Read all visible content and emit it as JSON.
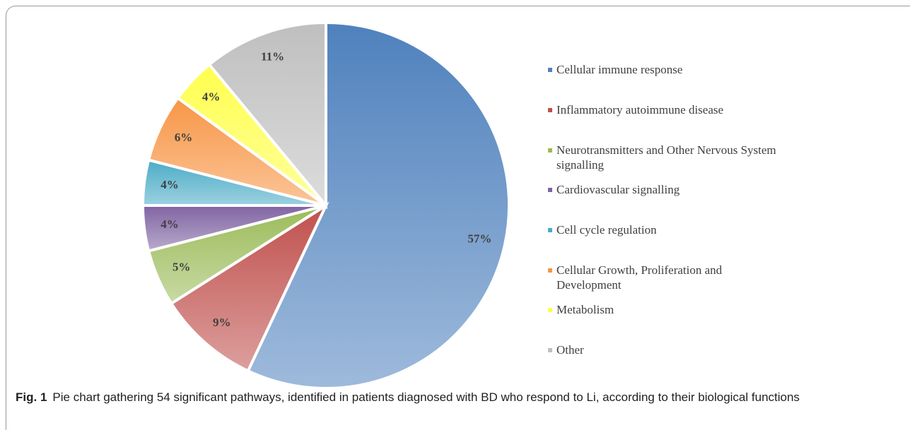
{
  "chart_data": {
    "type": "pie",
    "categories": [
      "Cellular immune response",
      "Inflammatory autoimmune disease",
      "Neurotransmitters and Other Nervous System signalling",
      "Cardiovascular signalling",
      "Cell cycle regulation",
      "Cellular Growth, Proliferation and Development",
      "Metabolism",
      "Other"
    ],
    "values": [
      57,
      9,
      5,
      4,
      4,
      6,
      4,
      11
    ],
    "value_labels": [
      "57%",
      "9%",
      "5%",
      "4%",
      "4%",
      "6%",
      "4%",
      "11%"
    ],
    "colors": [
      "#4f81bd",
      "#c0504d",
      "#9bbb59",
      "#8064a2",
      "#4bacc6",
      "#f79646",
      "#ffff4d",
      "#bfbfbf"
    ],
    "legend": "right"
  },
  "caption": {
    "label": "Fig. 1",
    "text": "Pie chart gathering 54 significant pathways, identified in patients diagnosed with BD who respond to Li, according to their biological functions"
  }
}
